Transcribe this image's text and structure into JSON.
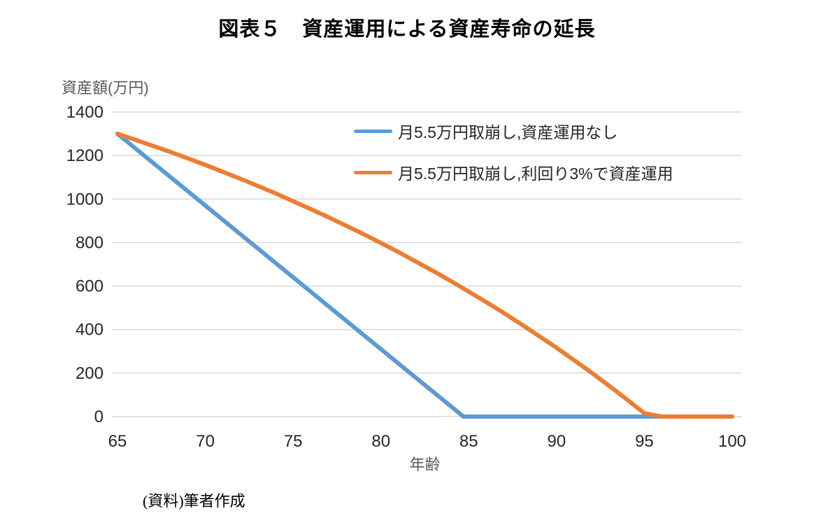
{
  "page": {
    "title": "図表５　資産運用による資産寿命の延長",
    "source_note": "(資料)筆者作成"
  },
  "chart_data": {
    "type": "line",
    "title": "図表５　資産運用による資産寿命の延長",
    "xlabel": "年齢",
    "ylabel": "資産額(万円)",
    "xlim": [
      65,
      100
    ],
    "ylim": [
      0,
      1400
    ],
    "xticks": [
      65,
      70,
      75,
      80,
      85,
      90,
      95,
      100
    ],
    "yticks": [
      0,
      200,
      400,
      600,
      800,
      1000,
      1200,
      1400
    ],
    "grid": "horizontal",
    "legend_position": "inside-top",
    "grid_color": "#D9D9D9",
    "tick_color": "#262626",
    "axis_label_color": "#595959",
    "series": [
      {
        "name": "月5.5万円取崩し,資産運用なし",
        "color": "#5B9BD5",
        "points": [
          [
            65,
            1300
          ],
          [
            66,
            1234
          ],
          [
            67,
            1168
          ],
          [
            68,
            1102
          ],
          [
            69,
            1036
          ],
          [
            70,
            970
          ],
          [
            71,
            904
          ],
          [
            72,
            838
          ],
          [
            73,
            772
          ],
          [
            74,
            706
          ],
          [
            75,
            640
          ],
          [
            76,
            574
          ],
          [
            77,
            508
          ],
          [
            78,
            442
          ],
          [
            79,
            376
          ],
          [
            80,
            310
          ],
          [
            81,
            244
          ],
          [
            82,
            178
          ],
          [
            83,
            112
          ],
          [
            84,
            46
          ],
          [
            84.7,
            0
          ],
          [
            85,
            0
          ],
          [
            86,
            0
          ],
          [
            87,
            0
          ],
          [
            88,
            0
          ],
          [
            89,
            0
          ],
          [
            90,
            0
          ],
          [
            91,
            0
          ],
          [
            92,
            0
          ],
          [
            93,
            0
          ],
          [
            94,
            0
          ],
          [
            95,
            0
          ],
          [
            96,
            0
          ],
          [
            97,
            0
          ],
          [
            98,
            0
          ],
          [
            99,
            0
          ],
          [
            100,
            0
          ]
        ]
      },
      {
        "name": "月5.5万円取崩し,利回り3%で資産運用",
        "color": "#ED7D31",
        "points": [
          [
            65,
            1300
          ],
          [
            66,
            1273
          ],
          [
            67,
            1245
          ],
          [
            68,
            1217
          ],
          [
            69,
            1187
          ],
          [
            70,
            1157
          ],
          [
            71,
            1125
          ],
          [
            72,
            1093
          ],
          [
            73,
            1060
          ],
          [
            74,
            1026
          ],
          [
            75,
            990
          ],
          [
            76,
            954
          ],
          [
            77,
            917
          ],
          [
            78,
            878
          ],
          [
            79,
            839
          ],
          [
            80,
            798
          ],
          [
            81,
            756
          ],
          [
            82,
            712
          ],
          [
            83,
            668
          ],
          [
            84,
            622
          ],
          [
            85,
            574
          ],
          [
            86,
            526
          ],
          [
            87,
            476
          ],
          [
            88,
            424
          ],
          [
            89,
            370
          ],
          [
            90,
            316
          ],
          [
            91,
            259
          ],
          [
            92,
            201
          ],
          [
            93,
            141
          ],
          [
            94,
            79
          ],
          [
            95,
            15
          ],
          [
            96,
            0
          ],
          [
            97,
            0
          ],
          [
            98,
            0
          ],
          [
            99,
            0
          ],
          [
            100,
            0
          ]
        ]
      }
    ]
  }
}
